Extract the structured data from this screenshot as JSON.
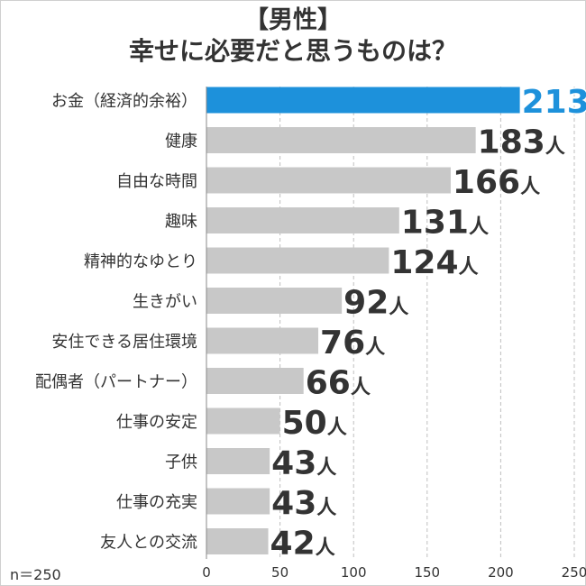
{
  "title_line1": "【男性】",
  "title_line2": "幸せに必要だと思うものは？",
  "sample_size": "n＝250",
  "colors": {
    "highlight": "#1d91db",
    "bar": "#c8c8c8",
    "text": "#333333",
    "grid": "#bfbfbf"
  },
  "chart_data": {
    "type": "bar",
    "orientation": "horizontal",
    "title": "【男性】幸せに必要だと思うものは？",
    "categories": [
      "お金（経済的余裕）",
      "健康",
      "自由な時間",
      "趣味",
      "精神的なゆとり",
      "生きがい",
      "安住できる居住環境",
      "配偶者（パートナー）",
      "仕事の安定",
      "子供",
      "仕事の充実",
      "友人との交流"
    ],
    "values": [
      213,
      183,
      166,
      131,
      124,
      92,
      76,
      66,
      50,
      43,
      43,
      42
    ],
    "unit": "人",
    "xlim": [
      0,
      250
    ],
    "xticks": [
      0,
      50,
      100,
      150,
      200,
      250
    ],
    "grid": true,
    "highlight_index": 0
  }
}
